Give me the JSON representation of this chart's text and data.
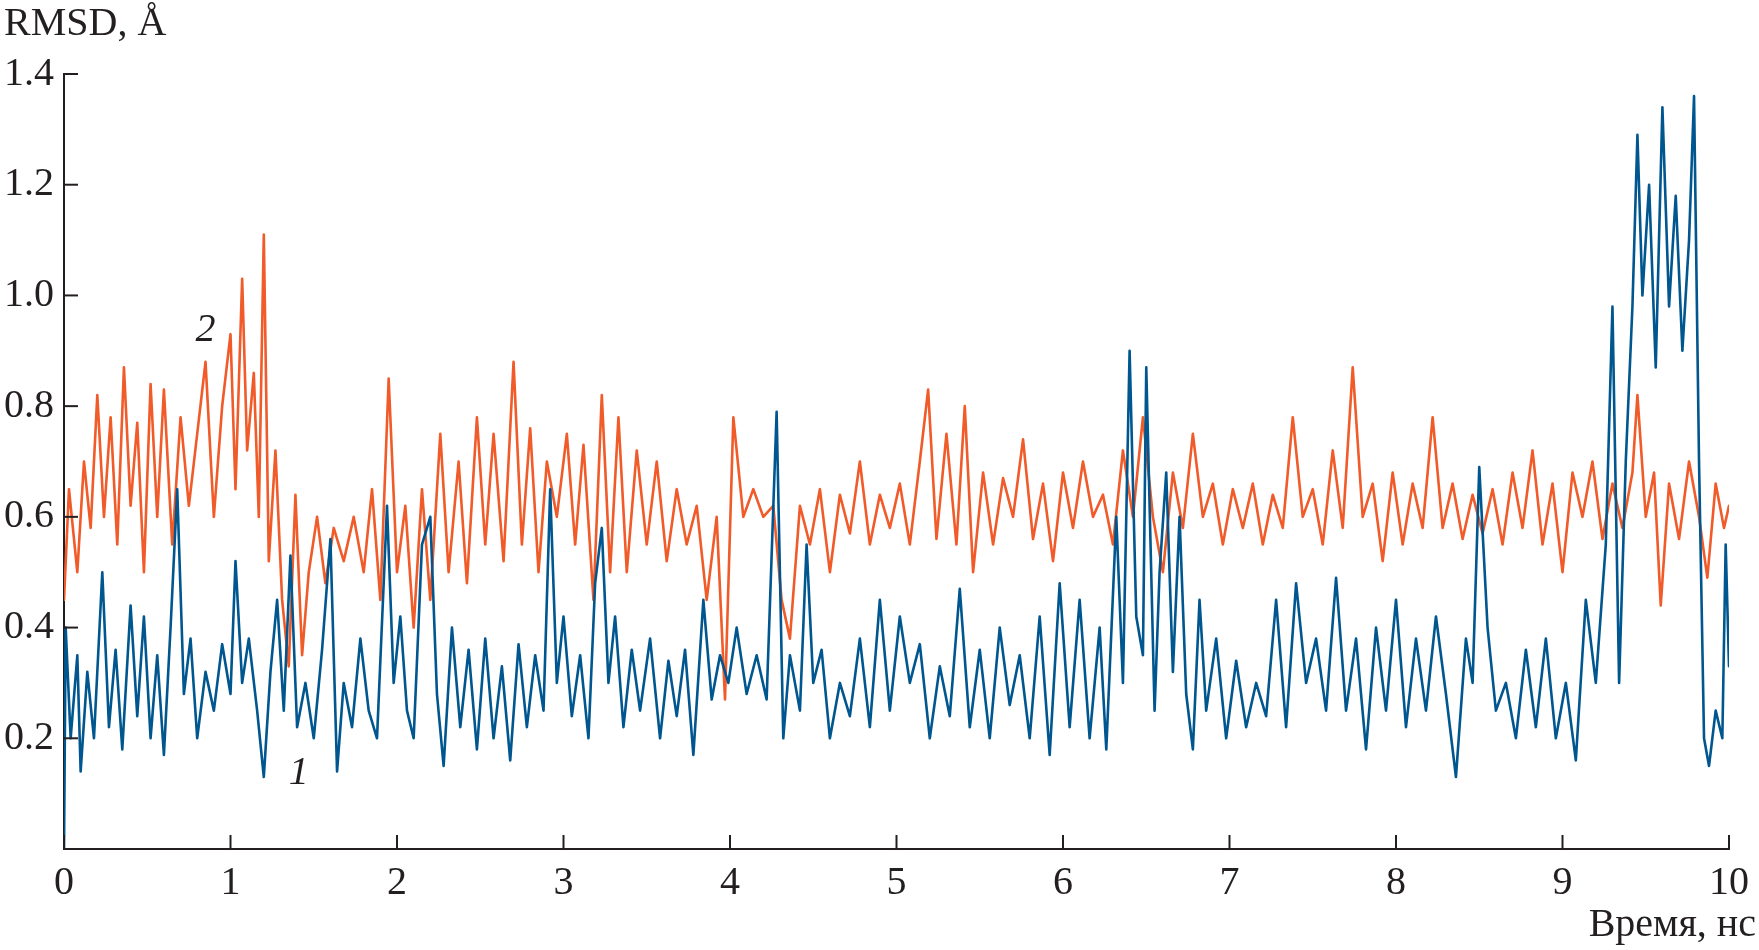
{
  "chart_data": {
    "type": "line",
    "xlabel": "Время, нс",
    "ylabel": "RMSD, Å",
    "xlim": [
      0,
      10
    ],
    "xticks": [
      0,
      1,
      2,
      3,
      4,
      5,
      6,
      7,
      8,
      9,
      10
    ],
    "ylim": [
      0,
      1.4
    ],
    "yticks": [
      0.2,
      0.4,
      0.6,
      0.8,
      {
        "value": 1,
        "label": "1.0"
      },
      1.2,
      1.4
    ],
    "grid": false,
    "legend": false,
    "line_style": "solid",
    "series": [
      {
        "name": "1",
        "color": "#00568f",
        "x": [
          0,
          0.01,
          0.04,
          0.08,
          0.1,
          0.14,
          0.18,
          0.23,
          0.27,
          0.31,
          0.35,
          0.4,
          0.44,
          0.48,
          0.52,
          0.56,
          0.6,
          0.64,
          0.68,
          0.72,
          0.76,
          0.8,
          0.85,
          0.9,
          0.95,
          1.0,
          1.03,
          1.07,
          1.11,
          1.16,
          1.2,
          1.24,
          1.28,
          1.32,
          1.36,
          1.4,
          1.45,
          1.5,
          1.55,
          1.6,
          1.64,
          1.68,
          1.73,
          1.78,
          1.83,
          1.88,
          1.94,
          1.98,
          2.02,
          2.06,
          2.1,
          2.15,
          2.2,
          2.24,
          2.28,
          2.33,
          2.38,
          2.43,
          2.48,
          2.53,
          2.58,
          2.63,
          2.68,
          2.73,
          2.78,
          2.83,
          2.88,
          2.92,
          2.96,
          3.0,
          3.05,
          3.1,
          3.15,
          3.19,
          3.23,
          3.27,
          3.31,
          3.36,
          3.41,
          3.46,
          3.52,
          3.58,
          3.63,
          3.68,
          3.73,
          3.78,
          3.84,
          3.89,
          3.94,
          3.99,
          4.04,
          4.1,
          4.16,
          4.22,
          4.28,
          4.32,
          4.36,
          4.42,
          4.46,
          4.5,
          4.55,
          4.6,
          4.66,
          4.72,
          4.78,
          4.84,
          4.9,
          4.96,
          5.02,
          5.08,
          5.14,
          5.2,
          5.26,
          5.32,
          5.38,
          5.44,
          5.5,
          5.56,
          5.62,
          5.68,
          5.74,
          5.8,
          5.86,
          5.92,
          5.98,
          6.04,
          6.1,
          6.16,
          6.22,
          6.26,
          6.32,
          6.36,
          6.4,
          6.44,
          6.48,
          6.5,
          6.55,
          6.58,
          6.62,
          6.66,
          6.7,
          6.74,
          6.78,
          6.82,
          6.86,
          6.92,
          6.98,
          7.04,
          7.1,
          7.16,
          7.22,
          7.28,
          7.34,
          7.4,
          7.46,
          7.52,
          7.58,
          7.64,
          7.7,
          7.76,
          7.82,
          7.88,
          7.94,
          8.0,
          8.06,
          8.12,
          8.18,
          8.24,
          8.3,
          8.36,
          8.42,
          8.46,
          8.5,
          8.55,
          8.6,
          8.66,
          8.72,
          8.78,
          8.84,
          8.9,
          8.96,
          9.02,
          9.08,
          9.14,
          9.2,
          9.26,
          9.3,
          9.34,
          9.38,
          9.42,
          9.45,
          9.48,
          9.52,
          9.56,
          9.6,
          9.64,
          9.68,
          9.72,
          9.76,
          9.79,
          9.82,
          9.85,
          9.88,
          9.92,
          9.96,
          9.98,
          10.0
        ],
        "values": [
          0,
          0.4,
          0.2,
          0.35,
          0.14,
          0.32,
          0.2,
          0.5,
          0.22,
          0.36,
          0.18,
          0.44,
          0.24,
          0.42,
          0.2,
          0.35,
          0.17,
          0.4,
          0.65,
          0.28,
          0.38,
          0.2,
          0.32,
          0.25,
          0.37,
          0.28,
          0.52,
          0.3,
          0.38,
          0.25,
          0.13,
          0.32,
          0.45,
          0.25,
          0.53,
          0.22,
          0.3,
          0.2,
          0.36,
          0.56,
          0.14,
          0.3,
          0.22,
          0.38,
          0.25,
          0.2,
          0.62,
          0.3,
          0.42,
          0.25,
          0.2,
          0.55,
          0.6,
          0.28,
          0.15,
          0.4,
          0.22,
          0.36,
          0.18,
          0.38,
          0.2,
          0.33,
          0.16,
          0.37,
          0.22,
          0.35,
          0.25,
          0.65,
          0.3,
          0.42,
          0.24,
          0.35,
          0.2,
          0.48,
          0.58,
          0.3,
          0.42,
          0.22,
          0.36,
          0.25,
          0.38,
          0.2,
          0.34,
          0.24,
          0.36,
          0.17,
          0.45,
          0.27,
          0.35,
          0.3,
          0.4,
          0.28,
          0.35,
          0.27,
          0.79,
          0.2,
          0.35,
          0.25,
          0.55,
          0.3,
          0.36,
          0.2,
          0.3,
          0.24,
          0.38,
          0.22,
          0.45,
          0.25,
          0.42,
          0.3,
          0.37,
          0.2,
          0.33,
          0.24,
          0.47,
          0.22,
          0.36,
          0.2,
          0.4,
          0.26,
          0.35,
          0.2,
          0.42,
          0.17,
          0.48,
          0.22,
          0.45,
          0.2,
          0.4,
          0.18,
          0.6,
          0.3,
          0.9,
          0.42,
          0.35,
          0.87,
          0.25,
          0.5,
          0.68,
          0.32,
          0.6,
          0.28,
          0.18,
          0.45,
          0.25,
          0.38,
          0.2,
          0.34,
          0.22,
          0.3,
          0.24,
          0.45,
          0.22,
          0.48,
          0.3,
          0.38,
          0.25,
          0.49,
          0.25,
          0.38,
          0.18,
          0.4,
          0.25,
          0.45,
          0.22,
          0.38,
          0.25,
          0.42,
          0.28,
          0.13,
          0.38,
          0.3,
          0.69,
          0.4,
          0.25,
          0.3,
          0.2,
          0.36,
          0.22,
          0.38,
          0.2,
          0.3,
          0.16,
          0.45,
          0.3,
          0.55,
          0.98,
          0.3,
          0.7,
          0.98,
          1.29,
          1.0,
          1.2,
          0.87,
          1.34,
          0.98,
          1.18,
          0.9,
          1.1,
          1.36,
          0.7,
          0.2,
          0.15,
          0.25,
          0.2,
          0.55,
          0.33
        ]
      },
      {
        "name": "2",
        "color": "#f15a29",
        "x": [
          0,
          0.03,
          0.08,
          0.12,
          0.16,
          0.2,
          0.24,
          0.28,
          0.32,
          0.36,
          0.4,
          0.44,
          0.48,
          0.52,
          0.56,
          0.6,
          0.65,
          0.7,
          0.75,
          0.8,
          0.85,
          0.9,
          0.95,
          1.0,
          1.03,
          1.07,
          1.1,
          1.14,
          1.17,
          1.2,
          1.23,
          1.27,
          1.31,
          1.35,
          1.39,
          1.43,
          1.47,
          1.52,
          1.57,
          1.62,
          1.68,
          1.74,
          1.8,
          1.85,
          1.9,
          1.95,
          2.0,
          2.05,
          2.1,
          2.15,
          2.2,
          2.26,
          2.31,
          2.37,
          2.42,
          2.48,
          2.53,
          2.58,
          2.64,
          2.7,
          2.75,
          2.8,
          2.85,
          2.9,
          2.96,
          3.02,
          3.07,
          3.12,
          3.18,
          3.23,
          3.28,
          3.33,
          3.38,
          3.44,
          3.5,
          3.56,
          3.62,
          3.68,
          3.74,
          3.8,
          3.86,
          3.92,
          3.97,
          4.02,
          4.08,
          4.14,
          4.2,
          4.26,
          4.31,
          4.36,
          4.42,
          4.48,
          4.54,
          4.6,
          4.66,
          4.72,
          4.78,
          4.84,
          4.9,
          4.96,
          5.02,
          5.08,
          5.14,
          5.19,
          5.24,
          5.3,
          5.36,
          5.41,
          5.46,
          5.52,
          5.58,
          5.64,
          5.7,
          5.76,
          5.82,
          5.88,
          5.94,
          6.0,
          6.06,
          6.12,
          6.18,
          6.24,
          6.3,
          6.36,
          6.42,
          6.48,
          6.54,
          6.6,
          6.66,
          6.72,
          6.78,
          6.84,
          6.9,
          6.96,
          7.02,
          7.08,
          7.14,
          7.2,
          7.26,
          7.32,
          7.38,
          7.44,
          7.5,
          7.56,
          7.62,
          7.68,
          7.74,
          7.8,
          7.86,
          7.92,
          7.98,
          8.04,
          8.1,
          8.16,
          8.22,
          8.28,
          8.34,
          8.4,
          8.46,
          8.52,
          8.58,
          8.64,
          8.7,
          8.76,
          8.82,
          8.88,
          8.94,
          9.0,
          9.06,
          9.12,
          9.18,
          9.24,
          9.3,
          9.36,
          9.42,
          9.45,
          9.5,
          9.55,
          9.59,
          9.64,
          9.7,
          9.76,
          9.82,
          9.87,
          9.92,
          9.97,
          10.0
        ],
        "values": [
          0.45,
          0.65,
          0.5,
          0.7,
          0.58,
          0.82,
          0.6,
          0.78,
          0.55,
          0.87,
          0.62,
          0.77,
          0.5,
          0.84,
          0.6,
          0.83,
          0.55,
          0.78,
          0.62,
          0.75,
          0.88,
          0.6,
          0.8,
          0.93,
          0.65,
          1.03,
          0.72,
          0.86,
          0.6,
          1.11,
          0.52,
          0.72,
          0.45,
          0.33,
          0.64,
          0.35,
          0.5,
          0.6,
          0.48,
          0.58,
          0.52,
          0.6,
          0.5,
          0.65,
          0.45,
          0.85,
          0.5,
          0.62,
          0.4,
          0.65,
          0.45,
          0.75,
          0.5,
          0.7,
          0.48,
          0.78,
          0.55,
          0.75,
          0.52,
          0.88,
          0.55,
          0.76,
          0.5,
          0.7,
          0.6,
          0.75,
          0.55,
          0.73,
          0.45,
          0.82,
          0.5,
          0.78,
          0.5,
          0.72,
          0.55,
          0.7,
          0.52,
          0.65,
          0.55,
          0.62,
          0.45,
          0.6,
          0.27,
          0.78,
          0.6,
          0.65,
          0.6,
          0.62,
          0.45,
          0.38,
          0.62,
          0.55,
          0.65,
          0.5,
          0.64,
          0.57,
          0.7,
          0.55,
          0.64,
          0.58,
          0.66,
          0.55,
          0.7,
          0.83,
          0.56,
          0.75,
          0.55,
          0.8,
          0.5,
          0.68,
          0.55,
          0.67,
          0.6,
          0.74,
          0.56,
          0.66,
          0.52,
          0.68,
          0.58,
          0.7,
          0.6,
          0.64,
          0.55,
          0.72,
          0.6,
          0.78,
          0.6,
          0.5,
          0.68,
          0.58,
          0.75,
          0.6,
          0.66,
          0.55,
          0.65,
          0.58,
          0.66,
          0.55,
          0.64,
          0.58,
          0.78,
          0.6,
          0.65,
          0.55,
          0.72,
          0.58,
          0.87,
          0.6,
          0.66,
          0.52,
          0.68,
          0.55,
          0.66,
          0.58,
          0.78,
          0.58,
          0.66,
          0.56,
          0.64,
          0.57,
          0.65,
          0.55,
          0.68,
          0.58,
          0.72,
          0.55,
          0.66,
          0.5,
          0.68,
          0.6,
          0.7,
          0.56,
          0.66,
          0.58,
          0.68,
          0.82,
          0.6,
          0.68,
          0.44,
          0.66,
          0.56,
          0.7,
          0.6,
          0.49,
          0.66,
          0.58,
          0.62
        ]
      }
    ]
  }
}
